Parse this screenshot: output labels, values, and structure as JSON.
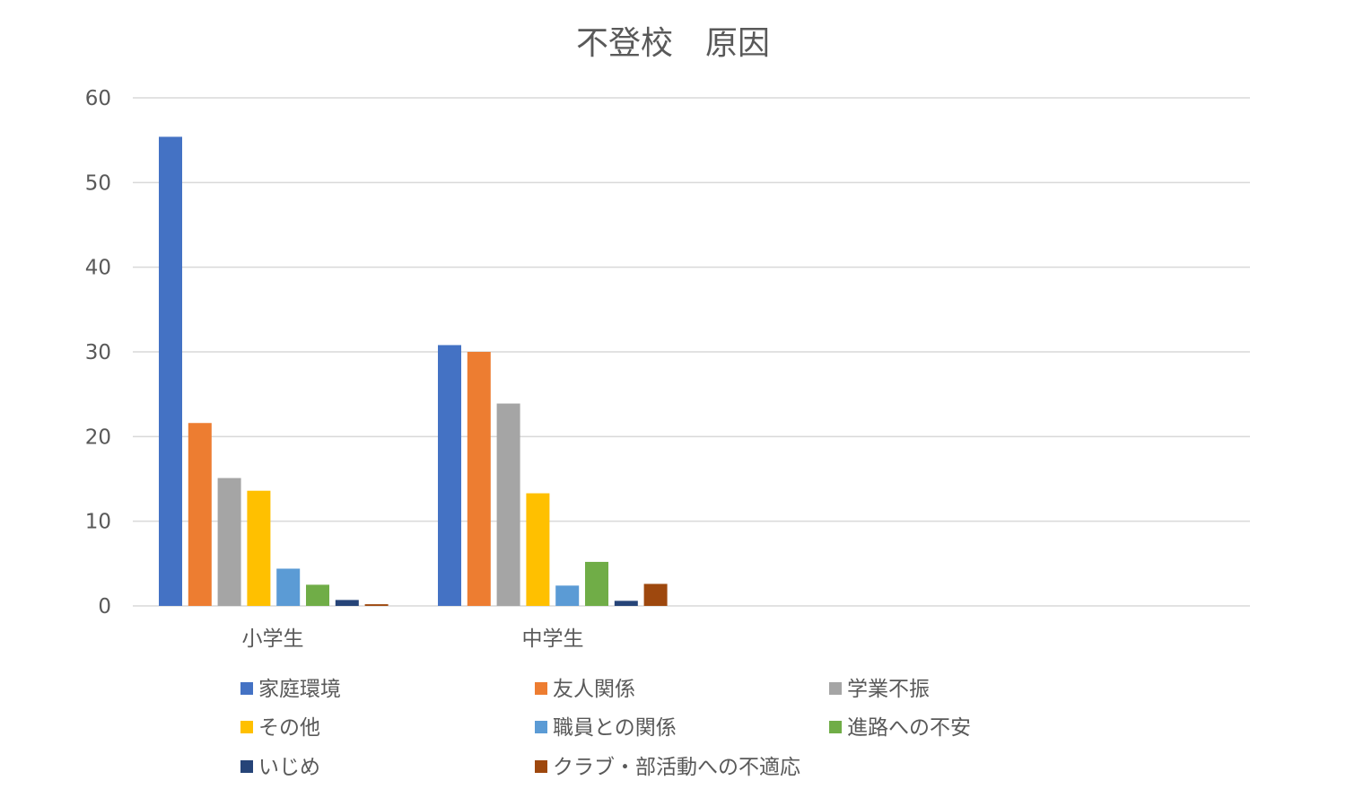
{
  "chart_data": {
    "type": "bar",
    "title": "不登校　原因",
    "xlabel": "",
    "ylabel": "",
    "ylim": [
      0,
      60
    ],
    "yticks": [
      "0",
      "10",
      "20",
      "30",
      "40",
      "50",
      "60"
    ],
    "grid": true,
    "legend_position": "bottom",
    "categories": [
      "小学生",
      "中学生"
    ],
    "series": [
      {
        "name": "家庭環境",
        "color": "#4472c4",
        "values": [
          55.4,
          30.8
        ]
      },
      {
        "name": "友人関係",
        "color": "#ed7d31",
        "values": [
          21.6,
          30.0
        ]
      },
      {
        "name": "学業不振",
        "color": "#a5a5a5",
        "values": [
          15.1,
          23.9
        ]
      },
      {
        "name": "その他",
        "color": "#ffc000",
        "values": [
          13.6,
          13.3
        ]
      },
      {
        "name": "職員との関係",
        "color": "#5b9bd5",
        "values": [
          4.4,
          2.4
        ]
      },
      {
        "name": "進路への不安",
        "color": "#70ad47",
        "values": [
          2.5,
          5.2
        ]
      },
      {
        "name": "いじめ",
        "color": "#264478",
        "values": [
          0.7,
          0.6
        ]
      },
      {
        "name": "クラブ・部活動への不適応",
        "color": "#9e480e",
        "values": [
          0.2,
          2.6
        ]
      }
    ]
  }
}
